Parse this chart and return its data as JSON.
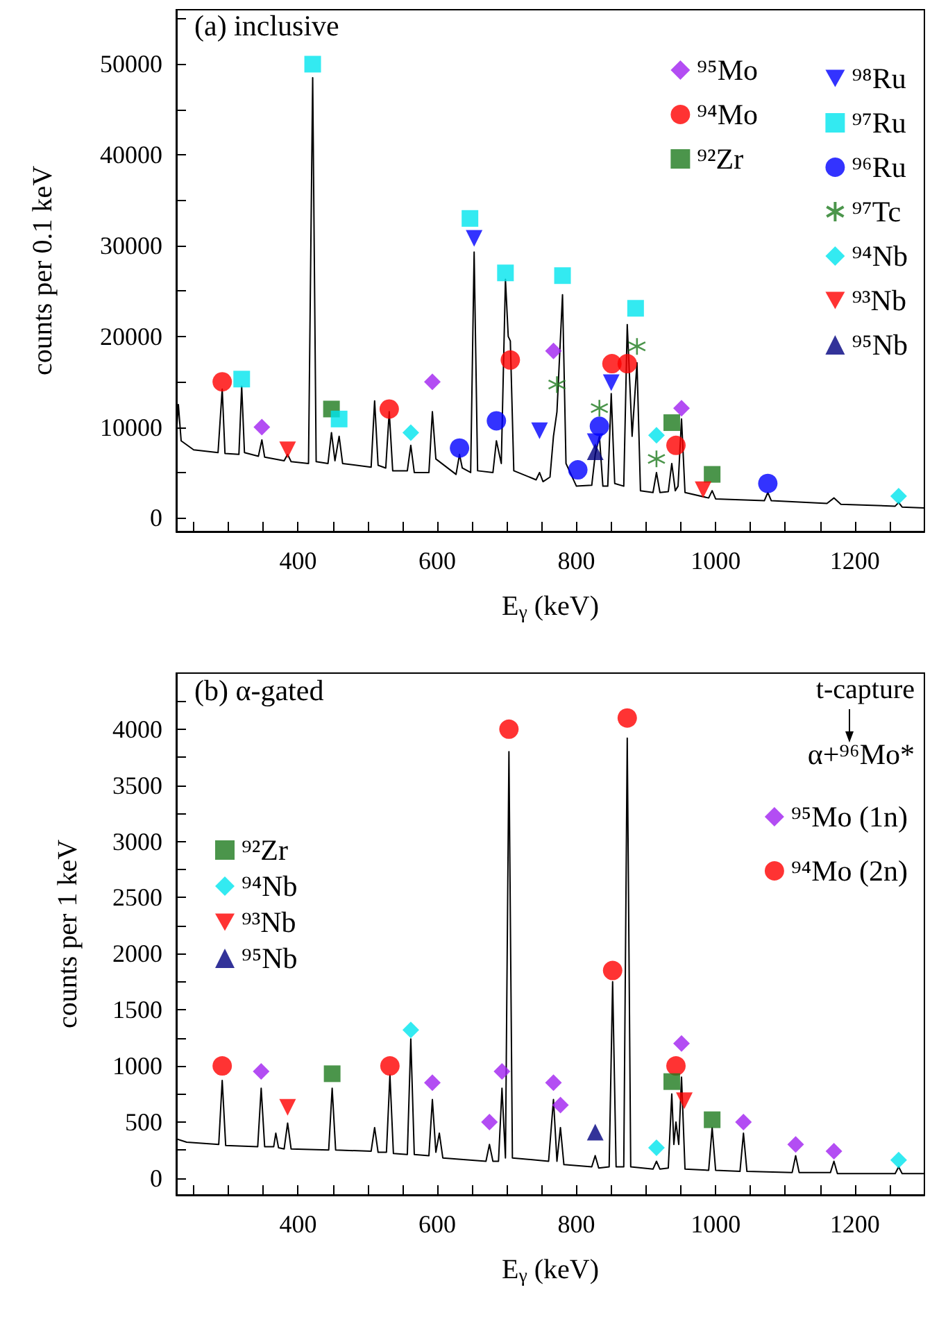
{
  "chart_data": [
    {
      "type": "scatter",
      "title": "(a) inclusive",
      "xlabel": "E$_{γ}$ (keV)",
      "ylabel": "counts per 0.1 keV",
      "legend": "top right",
      "grid": false,
      "xlim": [
        225,
        1300
      ],
      "ylim": [
        -1500,
        56000
      ],
      "xticks": [
        {
          "value": 250,
          "label": null
        },
        {
          "value": 300,
          "label": null
        },
        {
          "value": 350,
          "label": null
        },
        400,
        {
          "value": 450,
          "label": null
        },
        {
          "value": 500,
          "label": null
        },
        {
          "value": 550,
          "label": null
        },
        600,
        {
          "value": 650,
          "label": null
        },
        {
          "value": 700,
          "label": null
        },
        {
          "value": 750,
          "label": null
        },
        800,
        {
          "value": 850,
          "label": null
        },
        {
          "value": 900,
          "label": null
        },
        {
          "value": 950,
          "label": null
        },
        1000,
        {
          "value": 1050,
          "label": null
        },
        {
          "value": 1100,
          "label": null
        },
        {
          "value": 1150,
          "label": null
        },
        1200,
        {
          "value": 1250,
          "label": null
        }
      ],
      "yticks": [
        0,
        {
          "value": 5000,
          "label": null
        },
        10000,
        {
          "value": 15000,
          "label": null
        },
        20000,
        {
          "value": 25000,
          "label": null
        },
        30000,
        {
          "value": 35000,
          "label": null
        },
        40000,
        {
          "value": 45000,
          "label": null
        },
        50000,
        {
          "value": 55000,
          "label": null
        }
      ],
      "series": [
        {
          "type": "line",
          "color": "#000000",
          "marker": "none",
          "line_style": "solid",
          "x": [
            225,
            228,
            232,
            250,
            285,
            291,
            295,
            315,
            319,
            323,
            343,
            348,
            352,
            380,
            385,
            390,
            415,
            421,
            426,
            443,
            448,
            453,
            459,
            464,
            505,
            510,
            515,
            526,
            531,
            536,
            557,
            562,
            567,
            588,
            593,
            598,
            627,
            632,
            636,
            648,
            653,
            658,
            680,
            685,
            692,
            698,
            702,
            705,
            710,
            742,
            747,
            752,
            762,
            767,
            772,
            780,
            785,
            800,
            822,
            827,
            833,
            838,
            845,
            850,
            855,
            868,
            873,
            880,
            887,
            892,
            910,
            915,
            920,
            932,
            937,
            942,
            946,
            951,
            956,
            990,
            995,
            1000,
            1070,
            1075,
            1080,
            1160,
            1170,
            1180,
            1258,
            1263,
            1268,
            1300
          ],
          "values": [
            9000,
            12500,
            8500,
            7500,
            7200,
            14200,
            7100,
            7000,
            14500,
            7200,
            6800,
            8600,
            6700,
            6300,
            7000,
            6200,
            6000,
            48500,
            6200,
            6000,
            9400,
            6300,
            9000,
            6000,
            5600,
            12900,
            5800,
            5500,
            11700,
            5200,
            5200,
            8000,
            5000,
            5000,
            11700,
            6500,
            4800,
            7000,
            5500,
            5000,
            29300,
            5200,
            5000,
            8500,
            6000,
            26300,
            20000,
            19500,
            5200,
            4200,
            5000,
            4000,
            4500,
            9000,
            11700,
            24600,
            6000,
            3500,
            3600,
            7000,
            9000,
            3500,
            3500,
            13700,
            3800,
            3500,
            21300,
            9000,
            17100,
            3000,
            2800,
            5000,
            2800,
            2900,
            6000,
            3000,
            3500,
            10900,
            2800,
            2200,
            3000,
            2100,
            1900,
            2800,
            1900,
            1600,
            2200,
            1500,
            1300,
            1700,
            1200,
            1100
          ]
        },
        {
          "name": "⁹⁵Mo",
          "color": "#a020f0",
          "marker": "diamond",
          "x": [
            348,
            593,
            767,
            951
          ],
          "values": [
            10000,
            15000,
            18400,
            12100
          ]
        },
        {
          "name": "⁹⁴Mo",
          "color": "#ff0000",
          "marker": "circle",
          "x": [
            291,
            531,
            705,
            851,
            873,
            943
          ],
          "values": [
            15000,
            12000,
            17400,
            17000,
            17000,
            8000
          ]
        },
        {
          "name": "⁹²Zr",
          "color": "#1e7b1e",
          "marker": "square",
          "x": [
            448,
            937,
            995
          ],
          "values": [
            12000,
            10500,
            4800
          ]
        },
        {
          "name": "⁹⁸Ru",
          "color": "#0000ff",
          "marker": "triangle-down",
          "x": [
            653,
            747,
            827,
            850
          ],
          "values": [
            30800,
            9600,
            8400,
            14900
          ]
        },
        {
          "name": "⁹⁷Ru",
          "color": "#00e5ee",
          "marker": "square",
          "x": [
            319,
            421,
            459,
            647,
            698,
            780,
            885
          ],
          "values": [
            15300,
            50000,
            10900,
            33000,
            27000,
            26700,
            23100
          ]
        },
        {
          "name": "⁹⁶Ru",
          "color": "#0000ff",
          "marker": "circle",
          "x": [
            632,
            685,
            802,
            833,
            1075
          ],
          "values": [
            7700,
            10700,
            5300,
            10100,
            3800
          ]
        },
        {
          "name": "⁹⁷Tc",
          "color": "#1e7b1e",
          "marker": "cross",
          "x": [
            772,
            833,
            887,
            915
          ],
          "values": [
            14700,
            12100,
            18900,
            6500
          ]
        },
        {
          "name": "⁹⁴Nb",
          "color": "#00e5ee",
          "marker": "diamond",
          "x": [
            562,
            915,
            1263
          ],
          "values": [
            9400,
            9100,
            2400
          ]
        },
        {
          "name": "⁹³Nb",
          "color": "#ff0000",
          "marker": "triangle-down",
          "x": [
            385,
            982
          ],
          "values": [
            7500,
            3100
          ]
        },
        {
          "name": "⁹⁵Nb",
          "color": "#000080",
          "marker": "triangle",
          "x": [
            827
          ],
          "values": [
            7300
          ]
        }
      ]
    },
    {
      "type": "scatter",
      "title": "(b) α-gated",
      "xlabel": "E$_{γ}$ (keV)",
      "ylabel": "counts per 1 keV",
      "legend": "right",
      "grid": false,
      "annotations": [
        "t-capture",
        "α+⁹⁶Mo*"
      ],
      "xlim": [
        225,
        1300
      ],
      "ylim": [
        -150,
        4500
      ],
      "xticks": [
        {
          "value": 250,
          "label": null
        },
        {
          "value": 300,
          "label": null
        },
        {
          "value": 350,
          "label": null
        },
        400,
        {
          "value": 450,
          "label": null
        },
        {
          "value": 500,
          "label": null
        },
        {
          "value": 550,
          "label": null
        },
        600,
        {
          "value": 650,
          "label": null
        },
        {
          "value": 700,
          "label": null
        },
        {
          "value": 750,
          "label": null
        },
        800,
        {
          "value": 850,
          "label": null
        },
        {
          "value": 900,
          "label": null
        },
        {
          "value": 950,
          "label": null
        },
        1000,
        {
          "value": 1050,
          "label": null
        },
        {
          "value": 1100,
          "label": null
        },
        {
          "value": 1150,
          "label": null
        },
        1200,
        {
          "value": 1250,
          "label": null
        }
      ],
      "yticks": [
        0,
        {
          "value": 250,
          "label": null
        },
        500,
        {
          "value": 750,
          "label": null
        },
        1000,
        {
          "value": 1250,
          "label": null
        },
        1500,
        {
          "value": 1750,
          "label": null
        },
        2000,
        {
          "value": 2250,
          "label": null
        },
        2500,
        {
          "value": 2750,
          "label": null
        },
        3000,
        {
          "value": 3250,
          "label": null
        },
        3500,
        {
          "value": 3750,
          "label": null
        },
        4000,
        {
          "value": 4250,
          "label": null
        }
      ],
      "series": [
        {
          "type": "line",
          "color": "#000000",
          "marker": "none",
          "line_style": "solid",
          "x": [
            225,
            240,
            286,
            291,
            296,
            342,
            347,
            352,
            365,
            368,
            372,
            380,
            385,
            390,
            444,
            449,
            454,
            505,
            510,
            515,
            527,
            532,
            537,
            557,
            562,
            567,
            588,
            593,
            598,
            603,
            608,
            670,
            675,
            680,
            688,
            693,
            698,
            703,
            708,
            760,
            767,
            772,
            777,
            782,
            822,
            827,
            832,
            847,
            852,
            857,
            868,
            873,
            878,
            910,
            915,
            920,
            932,
            937,
            940,
            943,
            947,
            951,
            956,
            990,
            995,
            1000,
            1035,
            1040,
            1045,
            1110,
            1115,
            1120,
            1165,
            1170,
            1175,
            1258,
            1263,
            1268,
            1300
          ],
          "values": [
            350,
            320,
            300,
            870,
            290,
            280,
            800,
            280,
            280,
            400,
            270,
            260,
            490,
            260,
            250,
            800,
            250,
            240,
            450,
            230,
            230,
            920,
            220,
            210,
            1240,
            210,
            200,
            700,
            230,
            400,
            180,
            150,
            300,
            150,
            150,
            800,
            180,
            3800,
            180,
            150,
            700,
            150,
            450,
            120,
            100,
            200,
            90,
            100,
            1750,
            100,
            100,
            3920,
            100,
            80,
            150,
            80,
            90,
            750,
            300,
            500,
            300,
            900,
            80,
            70,
            450,
            70,
            60,
            400,
            60,
            50,
            200,
            50,
            50,
            150,
            40,
            40,
            100,
            40,
            40
          ]
        },
        {
          "name": "⁹⁵Mo (1n)",
          "color": "#a020f0",
          "marker": "diamond",
          "x": [
            347,
            593,
            675,
            693,
            767,
            777,
            951,
            1040,
            1115,
            1170
          ],
          "values": [
            950,
            850,
            500,
            950,
            850,
            650,
            1200,
            500,
            300,
            240
          ]
        },
        {
          "name": "⁹⁴Mo (2n)",
          "color": "#ff0000",
          "marker": "circle",
          "x": [
            291,
            532,
            703,
            852,
            873,
            943
          ],
          "values": [
            1000,
            1000,
            4000,
            1850,
            4100,
            1000
          ]
        },
        {
          "name": "⁹²Zr",
          "color": "#1e7b1e",
          "marker": "square",
          "x": [
            449,
            937,
            995
          ],
          "values": [
            930,
            860,
            520
          ]
        },
        {
          "name": "⁹⁴Nb",
          "color": "#00e5ee",
          "marker": "diamond",
          "x": [
            562,
            915,
            1263
          ],
          "values": [
            1320,
            270,
            160
          ]
        },
        {
          "name": "⁹³Nb",
          "color": "#ff0000",
          "marker": "triangle-down",
          "x": [
            385,
            955
          ],
          "values": [
            630,
            690
          ]
        },
        {
          "name": "⁹⁵Nb",
          "color": "#000080",
          "marker": "triangle",
          "x": [
            827
          ],
          "values": [
            410
          ]
        }
      ]
    }
  ]
}
